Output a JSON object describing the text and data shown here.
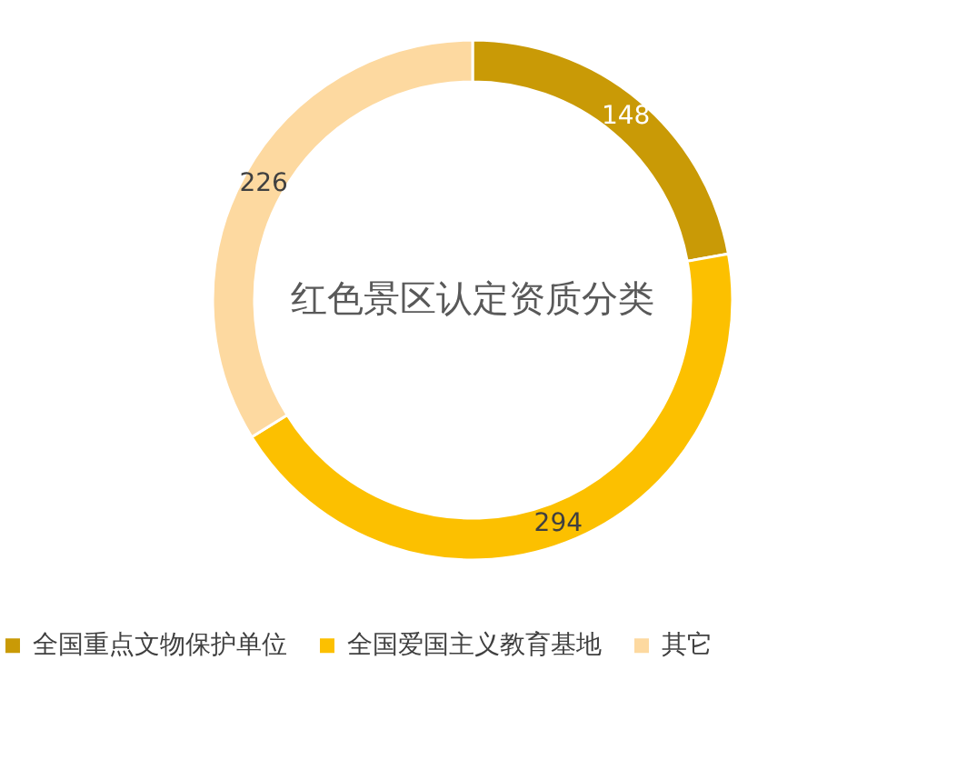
{
  "chart_data": {
    "type": "donut",
    "title": "红色景区认定资质分类",
    "categories": [
      "全国重点文物保护单位",
      "全国爱国主义教育基地",
      "其它"
    ],
    "values": [
      148,
      294,
      226
    ],
    "colors": [
      "#c99a06",
      "#fcc000",
      "#fdd9a0"
    ],
    "data_labels": true,
    "legend": "bottom"
  }
}
